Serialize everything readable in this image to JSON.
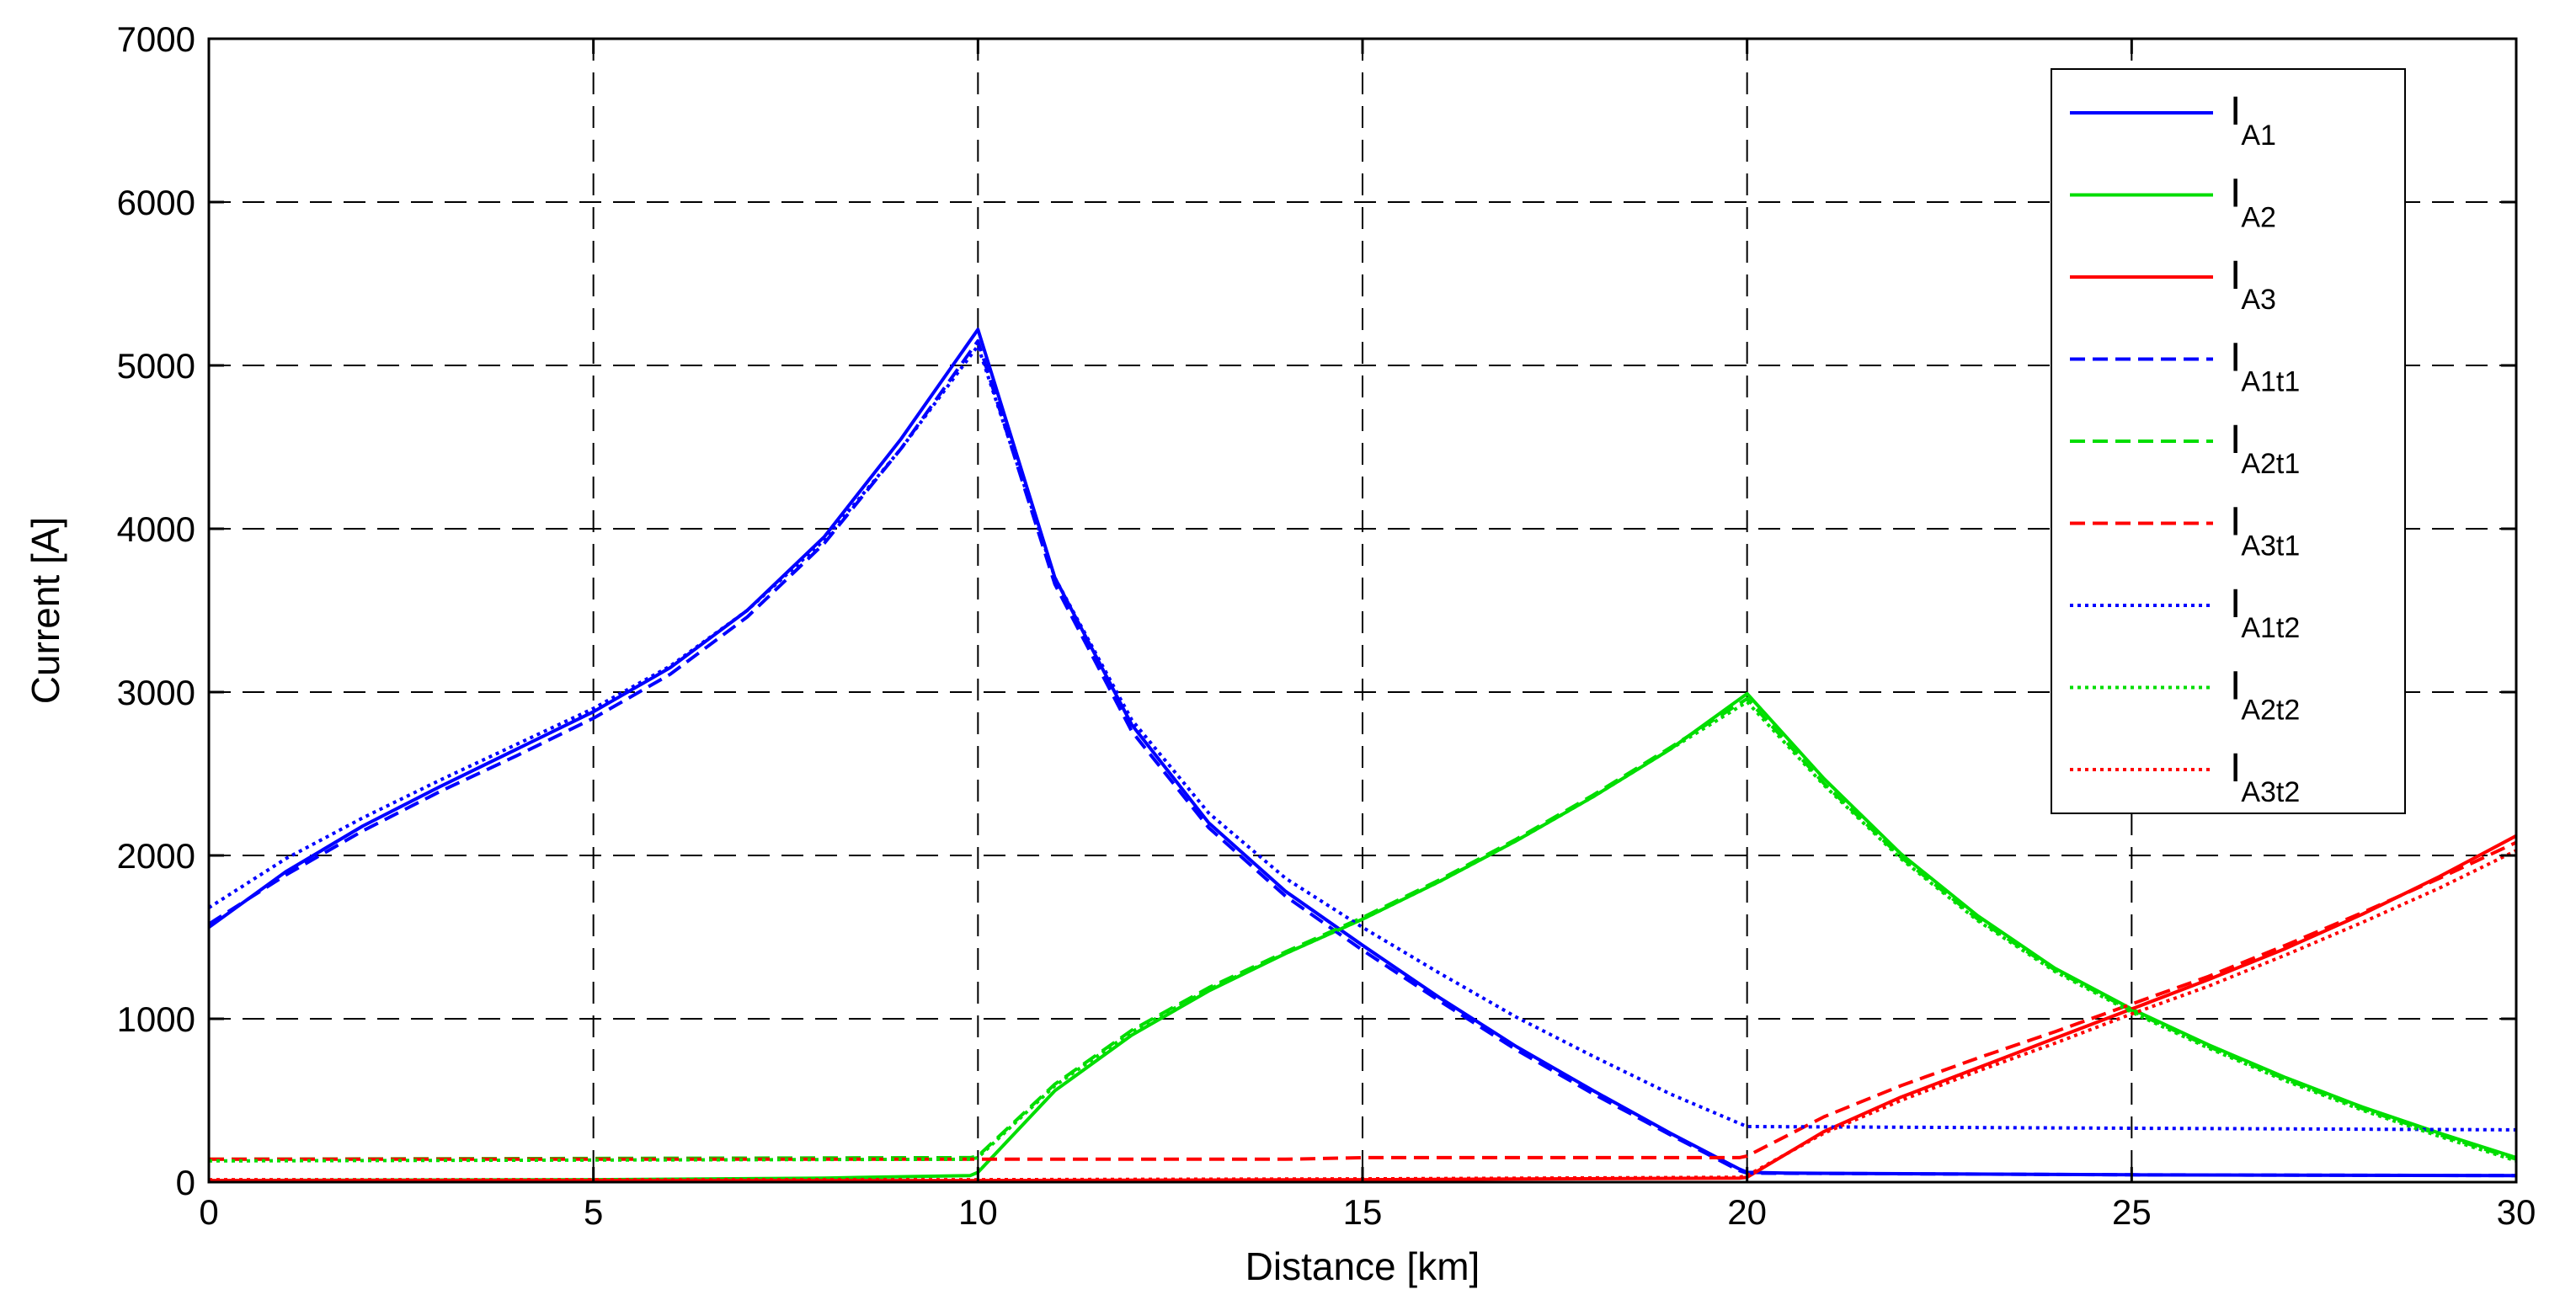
{
  "chart_data": {
    "type": "line",
    "title": "",
    "xlabel": "Distance [km]",
    "ylabel": "Current [A]",
    "xlim": [
      0,
      30
    ],
    "ylim": [
      0,
      7000
    ],
    "xticks": [
      0,
      5,
      10,
      15,
      20,
      25,
      30
    ],
    "yticks": [
      0,
      1000,
      2000,
      3000,
      4000,
      5000,
      6000,
      7000
    ],
    "grid": true,
    "grid_style": "dashed",
    "legend_position": "top-right",
    "series": [
      {
        "name": "I",
        "name_sub": "A1",
        "color": "#0000ff",
        "dash": "solid",
        "x": [
          0,
          1,
          2,
          3,
          4,
          5,
          6,
          7,
          8,
          9,
          10,
          11,
          12,
          13,
          14,
          15,
          16,
          17,
          18,
          19,
          19.9,
          20,
          20.5,
          25,
          30
        ],
        "y": [
          1560,
          1900,
          2180,
          2420,
          2650,
          2880,
          3150,
          3500,
          3950,
          4550,
          5220,
          3700,
          2800,
          2200,
          1780,
          1450,
          1130,
          830,
          560,
          300,
          80,
          60,
          55,
          45,
          40
        ]
      },
      {
        "name": "I",
        "name_sub": "A2",
        "color": "#00dd00",
        "dash": "solid",
        "x": [
          0,
          5,
          8,
          9.9,
          10,
          11,
          12,
          13,
          14,
          15,
          16,
          17,
          18,
          19,
          20,
          21,
          22,
          23,
          24,
          25,
          26,
          27,
          28,
          29,
          30
        ],
        "y": [
          10,
          15,
          25,
          40,
          60,
          560,
          900,
          1170,
          1400,
          1610,
          1840,
          2090,
          2360,
          2650,
          2990,
          2470,
          2010,
          1630,
          1310,
          1060,
          840,
          640,
          460,
          300,
          150
        ]
      },
      {
        "name": "I",
        "name_sub": "A3",
        "color": "#ff0000",
        "dash": "solid",
        "x": [
          0,
          10,
          15,
          19.9,
          20,
          21,
          22,
          23,
          24,
          25,
          26,
          27,
          28,
          29,
          30
        ],
        "y": [
          10,
          10,
          15,
          25,
          30,
          310,
          520,
          700,
          880,
          1060,
          1240,
          1430,
          1640,
          1870,
          2120
        ]
      },
      {
        "name": "I",
        "name_sub": "A1t1",
        "color": "#0000ff",
        "dash": "dashed",
        "x": [
          0,
          1,
          2,
          3,
          4,
          5,
          6,
          7,
          8,
          9,
          10,
          11,
          12,
          13,
          14,
          15,
          16,
          17,
          18,
          19,
          19.9,
          20,
          25,
          30
        ],
        "y": [
          1580,
          1880,
          2150,
          2390,
          2610,
          2840,
          3110,
          3460,
          3910,
          4490,
          5150,
          3660,
          2760,
          2170,
          1750,
          1420,
          1110,
          810,
          540,
          290,
          70,
          55,
          45,
          40
        ]
      },
      {
        "name": "I",
        "name_sub": "A2t1",
        "color": "#00dd00",
        "dash": "dashed",
        "x": [
          0,
          9.9,
          10,
          11,
          12,
          13,
          14,
          15,
          16,
          17,
          18,
          19,
          20,
          21,
          22,
          23,
          24,
          25,
          26,
          27,
          28,
          29,
          30
        ],
        "y": [
          140,
          150,
          160,
          600,
          930,
          1190,
          1410,
          1620,
          1850,
          2100,
          2370,
          2660,
          2960,
          2440,
          1990,
          1610,
          1300,
          1050,
          830,
          630,
          450,
          290,
          140
        ]
      },
      {
        "name": "I",
        "name_sub": "A3t1",
        "color": "#ff0000",
        "dash": "dashed",
        "x": [
          0,
          10,
          14,
          15,
          19.9,
          20,
          21,
          22,
          23,
          24,
          25,
          26,
          27,
          28,
          29,
          30
        ],
        "y": [
          140,
          140,
          140,
          150,
          150,
          160,
          400,
          590,
          760,
          920,
          1090,
          1260,
          1450,
          1650,
          1860,
          2080
        ]
      },
      {
        "name": "I",
        "name_sub": "A1t2",
        "color": "#0000ff",
        "dash": "dotted",
        "x": [
          0,
          1,
          2,
          3,
          4,
          5,
          6,
          7,
          8,
          9,
          10,
          11,
          12,
          13,
          14,
          15,
          16,
          17,
          18,
          19,
          19.9,
          20,
          25,
          30
        ],
        "y": [
          1680,
          1980,
          2230,
          2460,
          2680,
          2900,
          3160,
          3500,
          3930,
          4490,
          5120,
          3700,
          2830,
          2260,
          1860,
          1560,
          1280,
          1010,
          770,
          540,
          360,
          340,
          330,
          320
        ]
      },
      {
        "name": "I",
        "name_sub": "A2t2",
        "color": "#00dd00",
        "dash": "dotted",
        "x": [
          0,
          9.9,
          10,
          11,
          12,
          13,
          14,
          15,
          16,
          17,
          18,
          19,
          20,
          21,
          22,
          23,
          24,
          25,
          26,
          27,
          28,
          29,
          30
        ],
        "y": [
          130,
          140,
          150,
          590,
          920,
          1180,
          1400,
          1610,
          1840,
          2090,
          2360,
          2650,
          2940,
          2430,
          1980,
          1600,
          1290,
          1040,
          820,
          620,
          440,
          280,
          130
        ]
      },
      {
        "name": "I",
        "name_sub": "A3t2",
        "color": "#ff0000",
        "dash": "dotted",
        "x": [
          0,
          10,
          15,
          19.9,
          20,
          21,
          22,
          23,
          24,
          25,
          26,
          27,
          28,
          29,
          30
        ],
        "y": [
          15,
          15,
          20,
          30,
          40,
          300,
          500,
          680,
          850,
          1030,
          1200,
          1390,
          1590,
          1800,
          2030
        ]
      }
    ]
  }
}
